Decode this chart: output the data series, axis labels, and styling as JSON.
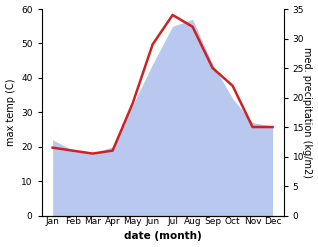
{
  "months": [
    "Jan",
    "Feb",
    "Mar",
    "Apr",
    "May",
    "Jun",
    "Jul",
    "Aug",
    "Sep",
    "Oct",
    "Nov",
    "Dec"
  ],
  "max_temp": [
    22,
    19,
    18,
    20,
    32,
    44,
    55,
    57,
    44,
    34,
    27,
    26
  ],
  "precipitation": [
    11.5,
    11,
    10.5,
    11,
    19,
    29,
    34,
    32,
    25,
    22,
    15,
    15
  ],
  "temp_ylim": [
    0,
    60
  ],
  "precip_ylim": [
    0,
    35
  ],
  "temp_fill_color": "#b8c8ee",
  "precip_line_color": "#cc2222",
  "left_label": "max temp (C)",
  "right_label": "med. precipitation (kg/m2)",
  "xlabel": "date (month)",
  "temp_yticks": [
    0,
    10,
    20,
    30,
    40,
    50,
    60
  ],
  "precip_yticks": [
    0,
    5,
    10,
    15,
    20,
    25,
    30,
    35
  ],
  "fill_alpha": 1.0,
  "line_width": 1.8,
  "tick_fontsize": 6.5,
  "label_fontsize": 7,
  "xlabel_fontsize": 7.5,
  "bg_color": "#ffffff"
}
